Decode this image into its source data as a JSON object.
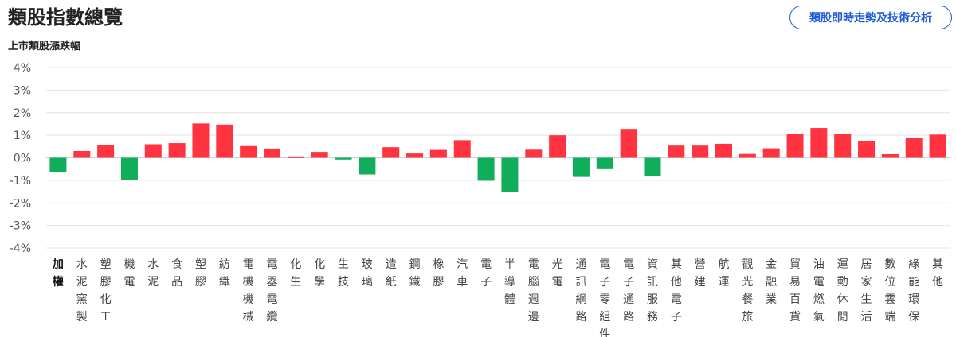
{
  "header": {
    "title": "類股指數總覽",
    "tech_button_label": "類股即時走勢及技術分析"
  },
  "chart_data": {
    "type": "bar",
    "title": "上市類股漲跌幅",
    "xlabel": "",
    "ylabel": "",
    "ylim": [
      -4,
      4
    ],
    "yticks": [
      4,
      3,
      2,
      1,
      0,
      -1,
      -2,
      -3,
      -4
    ],
    "ytick_suffix": "%",
    "grid": true,
    "colors": {
      "up": "#ff3440",
      "down": "#10ad5a",
      "grid": "#e4e4e4"
    },
    "active_category": "加權",
    "categories": [
      "加權",
      "水泥窯製",
      "塑膠化工",
      "機電",
      "水泥",
      "食品",
      "塑膠",
      "紡織",
      "電機機械",
      "電器電纜",
      "化生",
      "化學",
      "生技",
      "玻璃",
      "造紙",
      "鋼鐵",
      "橡膠",
      "汽車",
      "電子",
      "半導體",
      "電腦週邊",
      "光電",
      "通訊網路",
      "電子零組件",
      "電子通路",
      "資訊服務",
      "其他電子",
      "營建",
      "航運",
      "觀光餐旅",
      "金融業",
      "貿易百貨",
      "油電燃氣",
      "運動休閒",
      "居家生活",
      "數位雲端",
      "綠能環保",
      "其他"
    ],
    "values": [
      -0.63,
      0.3,
      0.58,
      -0.97,
      0.6,
      0.65,
      1.52,
      1.47,
      0.52,
      0.41,
      0.06,
      0.26,
      -0.08,
      -0.74,
      0.47,
      0.19,
      0.35,
      0.78,
      -1.02,
      -1.52,
      0.36,
      1.0,
      -0.85,
      -0.47,
      1.28,
      -0.8,
      0.54,
      0.54,
      0.62,
      0.17,
      0.42,
      1.07,
      1.32,
      1.06,
      0.74,
      0.16,
      0.89,
      1.03
    ]
  }
}
